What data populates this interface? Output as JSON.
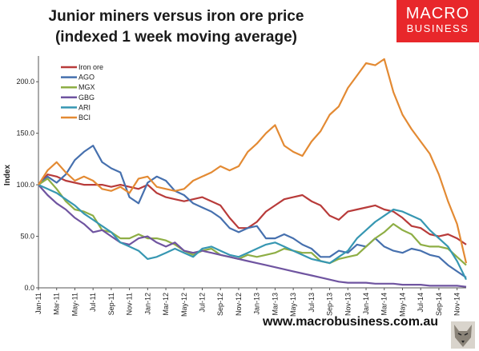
{
  "chart_data": {
    "type": "line",
    "title_line1": "Junior miners versus iron ore price",
    "title_line2": "(indexed 1 week moving average)",
    "xlabel": "",
    "ylabel": "Index",
    "ylim": [
      0,
      225
    ],
    "yticks": [
      "0.0",
      "50.0",
      "100.0",
      "150.0",
      "200.0"
    ],
    "ytick_values": [
      0,
      50,
      100,
      150,
      200
    ],
    "grid": false,
    "legend_position": "top-left",
    "x_tick_labels": [
      "Jan-11",
      "Mar-11",
      "May-11",
      "Jul-11",
      "Sep-11",
      "Nov-11",
      "Jan-12",
      "Mar-12",
      "May-12",
      "Jul-12",
      "Sep-12",
      "Nov-12",
      "Jan-13",
      "Mar-13",
      "May-13",
      "Jul-13",
      "Sep-13",
      "Nov-13",
      "Jan-14",
      "Mar-14",
      "May-14",
      "Jul-14",
      "Sep-14",
      "Nov-14"
    ],
    "x_months": [
      0,
      1,
      2,
      3,
      4,
      5,
      6,
      7,
      8,
      9,
      10,
      11,
      12,
      13,
      14,
      15,
      16,
      17,
      18,
      19,
      20,
      21,
      22,
      23,
      24,
      25,
      26,
      27,
      28,
      29,
      30,
      31,
      32,
      33,
      34,
      35,
      36,
      37,
      38,
      39,
      40,
      41,
      42,
      43,
      44,
      45,
      46,
      47
    ],
    "series": [
      {
        "name": "Iron ore",
        "color": "#b83b3a",
        "values": [
          100,
          110,
          108,
          104,
          102,
          100,
          100,
          100,
          98,
          100,
          98,
          96,
          100,
          92,
          88,
          86,
          84,
          86,
          88,
          84,
          80,
          68,
          58,
          58,
          64,
          74,
          80,
          86,
          88,
          90,
          84,
          80,
          70,
          66,
          74,
          76,
          78,
          80,
          76,
          74,
          68,
          60,
          58,
          52,
          50,
          52,
          48,
          42
        ]
      },
      {
        "name": "AGO",
        "color": "#4670ae",
        "values": [
          100,
          108,
          102,
          110,
          124,
          132,
          138,
          122,
          116,
          112,
          88,
          82,
          102,
          108,
          104,
          94,
          90,
          82,
          78,
          74,
          68,
          58,
          54,
          58,
          60,
          48,
          48,
          52,
          48,
          42,
          38,
          30,
          30,
          36,
          34,
          42,
          40,
          48,
          40,
          36,
          34,
          38,
          36,
          32,
          30,
          22,
          16,
          10
        ]
      },
      {
        "name": "MGX",
        "color": "#8eae45",
        "values": [
          100,
          106,
          96,
          84,
          76,
          74,
          70,
          56,
          54,
          48,
          48,
          52,
          48,
          48,
          46,
          42,
          36,
          32,
          36,
          38,
          32,
          30,
          28,
          32,
          30,
          32,
          34,
          38,
          36,
          34,
          34,
          26,
          24,
          28,
          30,
          32,
          40,
          48,
          54,
          62,
          56,
          52,
          42,
          40,
          40,
          38,
          30,
          22
        ]
      },
      {
        "name": "GBG",
        "color": "#6f54a0",
        "values": [
          100,
          90,
          82,
          76,
          68,
          62,
          54,
          56,
          50,
          44,
          42,
          48,
          50,
          44,
          40,
          44,
          36,
          34,
          36,
          34,
          32,
          30,
          28,
          26,
          24,
          22,
          20,
          18,
          16,
          14,
          12,
          10,
          8,
          6,
          5,
          5,
          5,
          4,
          4,
          4,
          3,
          3,
          3,
          2,
          2,
          2,
          2,
          1
        ]
      },
      {
        "name": "ARI",
        "color": "#3797b2",
        "values": [
          100,
          96,
          92,
          86,
          80,
          72,
          66,
          60,
          54,
          44,
          40,
          36,
          28,
          30,
          34,
          38,
          34,
          30,
          38,
          40,
          36,
          32,
          30,
          34,
          38,
          42,
          44,
          40,
          36,
          32,
          28,
          26,
          24,
          30,
          36,
          48,
          56,
          64,
          70,
          76,
          74,
          70,
          66,
          56,
          48,
          40,
          26,
          8
        ]
      },
      {
        "name": "BCI",
        "color": "#e38a33",
        "values": [
          100,
          114,
          122,
          112,
          104,
          108,
          104,
          96,
          94,
          98,
          92,
          106,
          108,
          98,
          96,
          94,
          96,
          104,
          108,
          112,
          118,
          114,
          118,
          132,
          140,
          150,
          158,
          138,
          132,
          128,
          142,
          152,
          168,
          176,
          194,
          206,
          218,
          216,
          222,
          190,
          168,
          154,
          142,
          130,
          110,
          84,
          62,
          24
        ]
      }
    ]
  },
  "brand": {
    "line1": "MACRO",
    "line2": "BUSINESS"
  },
  "footer": {
    "url": "www.macrobusiness.com.au"
  },
  "colors": {
    "brand_red": "#e8272b"
  },
  "icons": {
    "mascot": "wolf-mascot-icon"
  }
}
